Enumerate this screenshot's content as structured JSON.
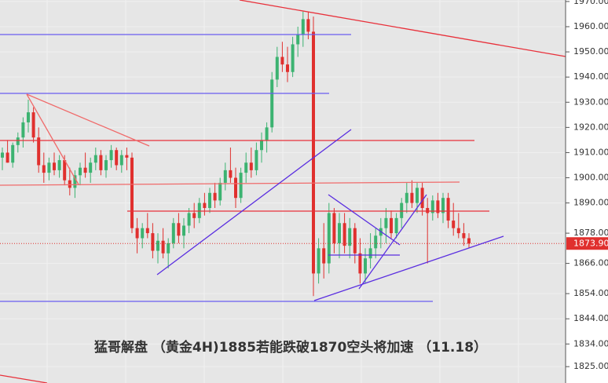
{
  "chart_data": {
    "type": "candlestick",
    "title": "猛哥解盘 （黄金4H)1885若能跌破1870空头将加速 （11.18）",
    "up_color": "#3cb371",
    "down_color": "#e0302e",
    "ylim": [
      1818.5,
      1970.6
    ],
    "yticks": [
      {
        "value": 1970,
        "label": "1970.00"
      },
      {
        "value": 1960,
        "label": "1960.00"
      },
      {
        "value": 1950,
        "label": "1950.00"
      },
      {
        "value": 1940,
        "label": "1940.00"
      },
      {
        "value": 1930,
        "label": "1930.00"
      },
      {
        "value": 1920,
        "label": "1920.00"
      },
      {
        "value": 1910,
        "label": "1910.00"
      },
      {
        "value": 1900,
        "label": "1900.00"
      },
      {
        "value": 1890,
        "label": "1890.00"
      },
      {
        "value": 1878,
        "label": "1878.00"
      },
      {
        "value": 1866,
        "label": "1866.00"
      },
      {
        "value": 1854,
        "label": "1854.00"
      },
      {
        "value": 1844,
        "label": "1844.00"
      },
      {
        "value": 1834,
        "label": "1834.00"
      },
      {
        "value": 1825,
        "label": "1825.00"
      }
    ],
    "last_price": {
      "value": 1873.9,
      "label": "1873.90"
    },
    "candles": [
      [
        1908,
        1912,
        1903,
        1910
      ],
      [
        1910,
        1915,
        1906,
        1906
      ],
      [
        1906,
        1914,
        1904,
        1913
      ],
      [
        1913,
        1918,
        1910,
        1916
      ],
      [
        1916,
        1924,
        1912,
        1922
      ],
      [
        1922,
        1931,
        1918,
        1926
      ],
      [
        1926,
        1928,
        1914,
        1916
      ],
      [
        1916,
        1920,
        1902,
        1905
      ],
      [
        1905,
        1910,
        1898,
        1902
      ],
      [
        1902,
        1908,
        1899,
        1906
      ],
      [
        1906,
        1910,
        1901,
        1903
      ],
      [
        1903,
        1909,
        1900,
        1907
      ],
      [
        1907,
        1909,
        1897,
        1899
      ],
      [
        1899,
        1904,
        1893,
        1896
      ],
      [
        1896,
        1903,
        1892,
        1901
      ],
      [
        1901,
        1906,
        1897,
        1904
      ],
      [
        1904,
        1910,
        1900,
        1902
      ],
      [
        1902,
        1908,
        1898,
        1906
      ],
      [
        1906,
        1912,
        1903,
        1909
      ],
      [
        1909,
        1911,
        1901,
        1903
      ],
      [
        1903,
        1909,
        1900,
        1907
      ],
      [
        1907,
        1913,
        1904,
        1911
      ],
      [
        1911,
        1912,
        1903,
        1905
      ],
      [
        1905,
        1911,
        1902,
        1909
      ],
      [
        1909,
        1912,
        1903,
        1908
      ],
      [
        1908,
        1910,
        1878,
        1880
      ],
      [
        1880,
        1884,
        1870,
        1876
      ],
      [
        1876,
        1882,
        1872,
        1880
      ],
      [
        1880,
        1886,
        1876,
        1878
      ],
      [
        1878,
        1882,
        1868,
        1871
      ],
      [
        1871,
        1878,
        1866,
        1875
      ],
      [
        1875,
        1880,
        1868,
        1870
      ],
      [
        1870,
        1876,
        1864,
        1874
      ],
      [
        1874,
        1884,
        1872,
        1882
      ],
      [
        1882,
        1886,
        1874,
        1877
      ],
      [
        1877,
        1884,
        1872,
        1881
      ],
      [
        1881,
        1888,
        1878,
        1886
      ],
      [
        1886,
        1890,
        1880,
        1884
      ],
      [
        1884,
        1892,
        1882,
        1890
      ],
      [
        1890,
        1894,
        1885,
        1888
      ],
      [
        1888,
        1896,
        1886,
        1894
      ],
      [
        1894,
        1898,
        1888,
        1891
      ],
      [
        1891,
        1900,
        1889,
        1898
      ],
      [
        1898,
        1906,
        1895,
        1903
      ],
      [
        1903,
        1912,
        1898,
        1900
      ],
      [
        1900,
        1904,
        1888,
        1892
      ],
      [
        1892,
        1904,
        1890,
        1902
      ],
      [
        1902,
        1910,
        1898,
        1906
      ],
      [
        1906,
        1912,
        1900,
        1903
      ],
      [
        1903,
        1914,
        1901,
        1911
      ],
      [
        1911,
        1918,
        1906,
        1915
      ],
      [
        1915,
        1922,
        1910,
        1920
      ],
      [
        1920,
        1942,
        1918,
        1939
      ],
      [
        1939,
        1952,
        1936,
        1948
      ],
      [
        1948,
        1954,
        1942,
        1945
      ],
      [
        1945,
        1952,
        1938,
        1942
      ],
      [
        1942,
        1956,
        1940,
        1953
      ],
      [
        1953,
        1960,
        1948,
        1957
      ],
      [
        1957,
        1966,
        1952,
        1963
      ],
      [
        1963,
        1966,
        1955,
        1958
      ],
      [
        1958,
        1964,
        1853,
        1862
      ],
      [
        1862,
        1876,
        1858,
        1872
      ],
      [
        1872,
        1882,
        1860,
        1866
      ],
      [
        1866,
        1890,
        1862,
        1886
      ],
      [
        1886,
        1888,
        1870,
        1874
      ],
      [
        1874,
        1886,
        1868,
        1882
      ],
      [
        1882,
        1886,
        1870,
        1873
      ],
      [
        1873,
        1884,
        1868,
        1880
      ],
      [
        1880,
        1882,
        1866,
        1870
      ],
      [
        1870,
        1876,
        1858,
        1862
      ],
      [
        1862,
        1872,
        1858,
        1868
      ],
      [
        1868,
        1878,
        1864,
        1872
      ],
      [
        1872,
        1880,
        1868,
        1877
      ],
      [
        1877,
        1884,
        1872,
        1880
      ],
      [
        1880,
        1888,
        1874,
        1884
      ],
      [
        1884,
        1887,
        1876,
        1878
      ],
      [
        1878,
        1886,
        1876,
        1884
      ],
      [
        1884,
        1892,
        1880,
        1890
      ],
      [
        1890,
        1898,
        1886,
        1894
      ],
      [
        1894,
        1899,
        1888,
        1890
      ],
      [
        1890,
        1898,
        1886,
        1896
      ],
      [
        1896,
        1898,
        1885,
        1888
      ],
      [
        1888,
        1892,
        1866,
        1886
      ],
      [
        1886,
        1893,
        1883,
        1891
      ],
      [
        1891,
        1894,
        1884,
        1886
      ],
      [
        1886,
        1894,
        1882,
        1892
      ],
      [
        1892,
        1894,
        1880,
        1883
      ],
      [
        1883,
        1890,
        1877,
        1880
      ],
      [
        1880,
        1886,
        1876,
        1878
      ],
      [
        1878,
        1882,
        1873,
        1876
      ],
      [
        1876,
        1878,
        1872,
        1873.9
      ]
    ]
  }
}
